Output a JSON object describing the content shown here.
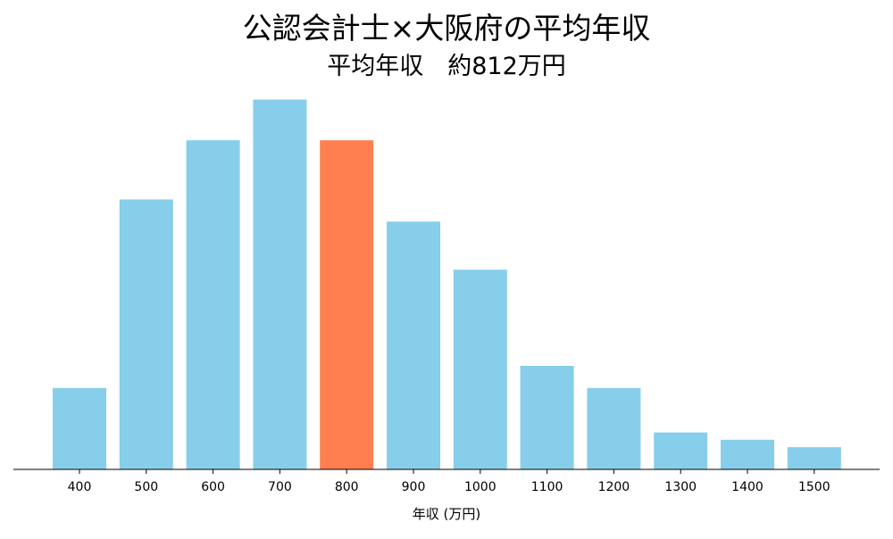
{
  "chart_data": {
    "type": "bar",
    "title": "公認会計士×大阪府の平均年収",
    "subtitle": "平均年収　約812万円",
    "xlabel": "年収 (万円)",
    "ylabel": "",
    "categories": [
      "400",
      "500",
      "600",
      "700",
      "800",
      "900",
      "1000",
      "1100",
      "1200",
      "1300",
      "1400",
      "1500"
    ],
    "values": [
      2.2,
      7.3,
      8.9,
      10.0,
      8.9,
      6.7,
      5.4,
      2.8,
      2.2,
      1.0,
      0.8,
      0.6
    ],
    "ylim": [
      0,
      10.4
    ],
    "highlight_index": 4,
    "colors": {
      "bar": "#87CEEB",
      "highlight": "#FF7F50",
      "axis": "#000000"
    },
    "grid": false,
    "legend": "none"
  }
}
